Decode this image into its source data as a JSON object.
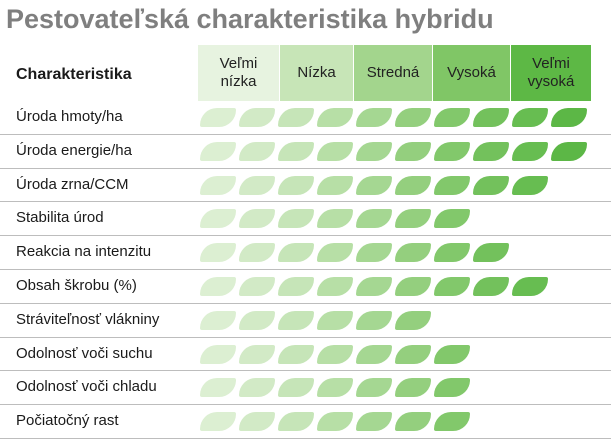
{
  "title": "Pestovateľská charakteristika hybridu",
  "column_header": "Charakteristika",
  "colors": {
    "level_headers": [
      "#e7f3e0",
      "#c7e5b7",
      "#a3d58d",
      "#80c666",
      "#5db845"
    ],
    "leaf_shades": [
      "#dcefd2",
      "#d2eac6",
      "#c6e5b8",
      "#b7dfa6",
      "#a5d792",
      "#94cf7e",
      "#82c86b",
      "#73c15c",
      "#67bd51",
      "#5cb746",
      "#54b340"
    ]
  },
  "levels": [
    {
      "label": "Veľmi\nnízka"
    },
    {
      "label": "Nízka"
    },
    {
      "label": "Stredná"
    },
    {
      "label": "Vysoká"
    },
    {
      "label": "Veľmi\nvysoká"
    }
  ],
  "max_score": 10,
  "rows": [
    {
      "label": "Úroda hmoty/ha",
      "score": 10
    },
    {
      "label": "Úroda energie/ha",
      "score": 10
    },
    {
      "label": "Úroda zrna/CCM",
      "score": 9
    },
    {
      "label": "Stabilita úrod",
      "score": 7
    },
    {
      "label": "Reakcia na intenzitu",
      "score": 8
    },
    {
      "label": "Obsah škrobu (%)",
      "score": 9
    },
    {
      "label": "Stráviteľnosť vlákniny",
      "score": 6
    },
    {
      "label": "Odolnosť voči suchu",
      "score": 7
    },
    {
      "label": "Odolnosť voči chladu",
      "score": 7
    },
    {
      "label": "Počiatočný rast",
      "score": 7
    }
  ]
}
